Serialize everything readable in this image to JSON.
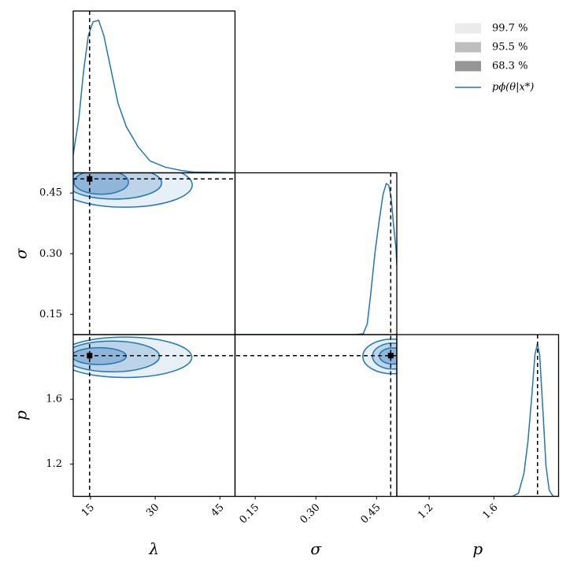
{
  "chart_data": {
    "type": "corner",
    "parameters": [
      {
        "name": "λ",
        "lim": [
          11,
          48.5
        ],
        "ticks": [
          15,
          30,
          45
        ],
        "true": 14.8,
        "marginal": {
          "x": [
            11,
            12.3,
            13.4,
            14.5,
            15.6,
            16.9,
            18.1,
            19.6,
            21.4,
            23.3,
            26,
            28.8,
            32.4,
            36.1,
            38.8,
            48.5
          ],
          "density": [
            0.118,
            0.35,
            0.66,
            0.89,
            0.98,
            0.99,
            0.89,
            0.69,
            0.45,
            0.3,
            0.17,
            0.077,
            0.036,
            0.015,
            0.005,
            0
          ]
        }
      },
      {
        "name": "σ",
        "lim": [
          0.1,
          0.5
        ],
        "ticks": [
          0.15,
          {
            "value": 0.3,
            "label": "0.30"
          },
          0.45
        ],
        "true": 0.485,
        "marginal": {
          "x": [
            0.1,
            0.397,
            0.417,
            0.427,
            0.436,
            0.446,
            0.456,
            0.466,
            0.474,
            0.48,
            0.486,
            0.492,
            0.498,
            0.5
          ],
          "density": [
            0,
            0,
            0.005,
            0.07,
            0.275,
            0.53,
            0.73,
            0.91,
            0.98,
            0.97,
            0.89,
            0.71,
            0.56,
            0.45
          ]
        }
      },
      {
        "name": "p",
        "lim": [
          1.0,
          2.0
        ],
        "ticks": [
          1.2,
          1.6
        ],
        "true": 1.87,
        "marginal": {
          "x": [
            1.0,
            1.714,
            1.752,
            1.786,
            1.811,
            1.835,
            1.854,
            1.869,
            1.883,
            1.903,
            1.922,
            1.942,
            1.966,
            2.0
          ],
          "density": [
            0,
            0,
            0.02,
            0.15,
            0.36,
            0.66,
            0.92,
            0.99,
            0.92,
            0.56,
            0.2,
            0.04,
            0,
            0
          ]
        }
      }
    ],
    "density_lim": [
      0,
      1.05
    ],
    "contour_levels": [
      "99.7 %",
      "95.5 %",
      "68.3 %"
    ],
    "legend_colors": [
      "#ebebeb",
      "#bfbfbf",
      "#969696"
    ],
    "fill_colors": [
      "#e8f0f7",
      "#bcd3e8",
      "#8fb5d9"
    ],
    "line_label": "pϕ(θ|x*)",
    "line_color": "#1f77b4",
    "contours": [
      {
        "x": 0,
        "y": 1,
        "ellipses": [
          {
            "cx": 23,
            "cy": 0.47,
            "rx": 15.6,
            "ry": 0.055
          },
          {
            "cx": 20.5,
            "cy": 0.475,
            "rx": 11,
            "ry": 0.04
          },
          {
            "cx": 17.5,
            "cy": 0.477,
            "rx": 6.3,
            "ry": 0.03
          }
        ]
      },
      {
        "x": 0,
        "y": 2,
        "ellipses": [
          {
            "cx": 23,
            "cy": 1.86,
            "rx": 15.5,
            "ry": 0.125
          },
          {
            "cx": 20,
            "cy": 1.865,
            "rx": 11,
            "ry": 0.095
          },
          {
            "cx": 17,
            "cy": 1.867,
            "rx": 6.3,
            "ry": 0.052
          }
        ]
      },
      {
        "x": 1,
        "y": 2,
        "ellipses": [
          {
            "cx": 0.49,
            "cy": 1.865,
            "rx": 0.074,
            "ry": 0.107
          },
          {
            "cx": 0.49,
            "cy": 1.867,
            "rx": 0.05,
            "ry": 0.08
          },
          {
            "cx": 0.49,
            "cy": 1.868,
            "rx": 0.033,
            "ry": 0.05
          }
        ]
      }
    ]
  }
}
